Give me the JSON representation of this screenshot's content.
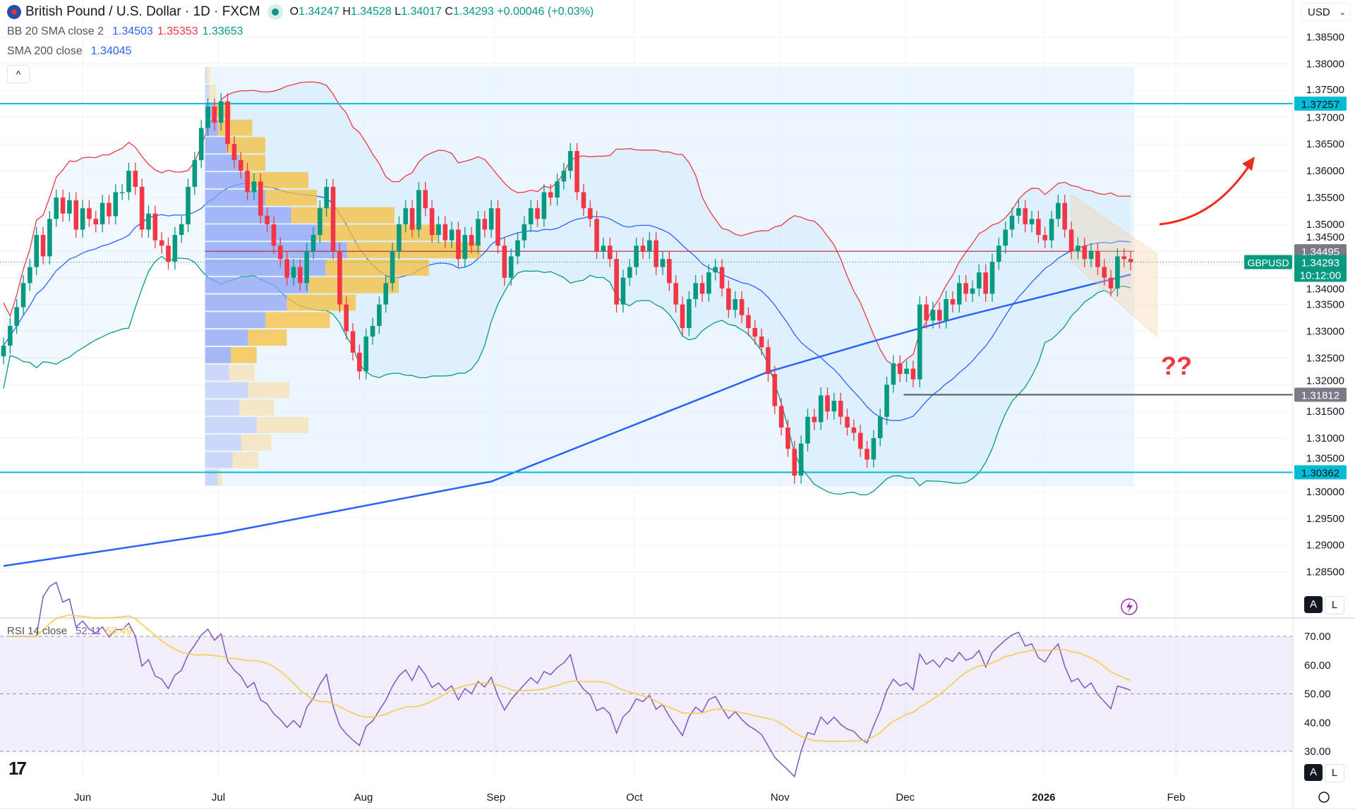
{
  "header": {
    "symbol_title": "British Pound / U.S. Dollar · 1D · FXCM",
    "o_label": "O",
    "o": "1.34247",
    "h_label": "H",
    "h": "1.34528",
    "l_label": "L",
    "l": "1.34017",
    "c_label": "C",
    "c": "1.34293",
    "change": "+0.00046 (+0.03%)"
  },
  "indicators": {
    "bb_label": "BB 20 SMA close 2",
    "bb_basis": "1.34503",
    "bb_upper": "1.35353",
    "bb_lower": "1.33653",
    "sma_label": "SMA 200 close",
    "sma_value": "1.34045",
    "rsi_label": "RSI 14 close",
    "rsi_value": "52.11",
    "rsi_ma": "53.49"
  },
  "controls": {
    "currency": "USD",
    "collapse": "^",
    "auto": "A",
    "log": "L"
  },
  "annotations": {
    "question": "??"
  },
  "colors": {
    "up": "#089981",
    "down": "#f23645",
    "sma200": "#2962ff",
    "bb_upper": "#f23645",
    "bb_lower": "#089981",
    "bb_basis": "#2962ff",
    "level": "#00bcd4",
    "rsi": "#7e57c2",
    "rsi_ma": "#f7c948"
  },
  "chart_data": {
    "type": "candlestick",
    "symbol": "GBPUSD",
    "ylim": [
      1.2825,
      1.388
    ],
    "price_ticks": [
      "1.38500",
      "1.38000",
      "1.37500",
      "1.37000",
      "1.36500",
      "1.36000",
      "1.35500",
      "1.35000",
      "1.34500",
      "1.34000",
      "1.33500",
      "1.33000",
      "1.32500",
      "1.32000",
      "1.31500",
      "1.31000",
      "1.30500",
      "1.30000",
      "1.29500",
      "1.29000",
      "1.28500"
    ],
    "time_ticks": [
      {
        "label": "Jun",
        "index": 12
      },
      {
        "label": "Jul",
        "index": 32.6
      },
      {
        "label": "Aug",
        "index": 54.6
      },
      {
        "label": "Sep",
        "index": 74.7
      },
      {
        "label": "Oct",
        "index": 95.7
      },
      {
        "label": "Nov",
        "index": 117.8
      },
      {
        "label": "Dec",
        "index": 136.8
      },
      {
        "label": "2026",
        "index": 157.8,
        "bold": true
      },
      {
        "label": "Feb",
        "index": 177.9
      }
    ],
    "closes": [
      1.3273,
      1.331,
      1.3345,
      1.339,
      1.342,
      1.348,
      1.344,
      1.351,
      1.355,
      1.352,
      1.3545,
      1.349,
      1.353,
      1.351,
      1.35,
      1.354,
      1.3515,
      1.356,
      1.356,
      1.36,
      1.357,
      1.349,
      1.352,
      1.347,
      1.346,
      1.343,
      1.348,
      1.35,
      1.357,
      1.362,
      1.368,
      1.372,
      1.369,
      1.373,
      1.365,
      1.362,
      1.36,
      1.356,
      1.358,
      1.3516,
      1.35,
      1.346,
      1.3435,
      1.34,
      1.342,
      1.339,
      1.345,
      1.348,
      1.353,
      1.357,
      1.345,
      1.335,
      1.33,
      1.326,
      1.3225,
      1.329,
      1.331,
      1.335,
      1.339,
      1.345,
      1.35,
      1.353,
      1.349,
      1.3564,
      1.353,
      1.348,
      1.35,
      1.347,
      1.349,
      1.3435,
      1.348,
      1.346,
      1.351,
      1.349,
      1.353,
      1.346,
      1.34,
      1.344,
      1.347,
      1.35,
      1.353,
      1.351,
      1.356,
      1.355,
      1.358,
      1.36,
      1.3637,
      1.356,
      1.353,
      1.351,
      1.345,
      1.346,
      1.3435,
      1.335,
      1.34,
      1.342,
      1.346,
      1.345,
      1.347,
      1.342,
      1.3435,
      1.339,
      1.335,
      1.3306,
      1.336,
      1.339,
      1.337,
      1.341,
      1.342,
      1.338,
      1.334,
      1.336,
      1.333,
      1.3306,
      1.329,
      1.327,
      1.322,
      1.316,
      1.312,
      1.308,
      1.303,
      1.309,
      1.314,
      1.313,
      1.318,
      1.315,
      1.317,
      1.314,
      1.312,
      1.311,
      1.308,
      1.306,
      1.31,
      1.314,
      1.32,
      1.324,
      1.322,
      1.323,
      1.321,
      1.335,
      1.332,
      1.334,
      1.332,
      1.336,
      1.335,
      1.339,
      1.337,
      1.338,
      1.341,
      1.337,
      1.343,
      1.346,
      1.349,
      1.3516,
      1.353,
      1.35,
      1.351,
      1.348,
      1.347,
      1.351,
      1.354,
      1.349,
      1.345,
      1.346,
      1.3435,
      1.345,
      1.342,
      1.34,
      1.338,
      1.344,
      1.3435,
      1.3429
    ],
    "sma200": [
      [
        0,
        1.2861
      ],
      [
        33,
        1.2922
      ],
      [
        74,
        1.3019
      ],
      [
        116,
        1.3224
      ],
      [
        131,
        1.3278
      ],
      [
        145,
        1.3326
      ],
      [
        171,
        1.3406
      ]
    ],
    "levels": [
      {
        "name": "resistance",
        "price": 1.37257,
        "label": "1.37257"
      },
      {
        "name": "support",
        "price": 1.30362,
        "label": "1.30362"
      },
      {
        "name": "swing-low",
        "price": 1.31812,
        "label": "1.31812",
        "from_index": 137
      },
      {
        "name": "poc",
        "price": 1.34495,
        "label": "1.34495",
        "from_index": 31
      }
    ],
    "last_price": {
      "label": "1.34293",
      "countdown": "10:12:00",
      "price": 1.34293
    },
    "volume_profile": {
      "from_index": 31,
      "to_index": 171,
      "top": 1.3795,
      "bottom": 1.301,
      "rows": [
        [
          2,
          4
        ],
        [
          5,
          8
        ],
        [
          10,
          20
        ],
        [
          15,
          40
        ],
        [
          25,
          45
        ],
        [
          40,
          30
        ],
        [
          50,
          70
        ],
        [
          70,
          60
        ],
        [
          100,
          120
        ],
        [
          130,
          140
        ],
        [
          165,
          155
        ],
        [
          140,
          120
        ],
        [
          120,
          105
        ],
        [
          95,
          80
        ],
        [
          70,
          75
        ],
        [
          50,
          45
        ],
        [
          30,
          30
        ],
        [
          28,
          30
        ],
        [
          50,
          48
        ],
        [
          40,
          40
        ],
        [
          60,
          60
        ],
        [
          42,
          35
        ],
        [
          32,
          30
        ],
        [
          15,
          5
        ]
      ]
    },
    "channel": {
      "from_index": 162,
      "to_index": 175,
      "upper": [
        1.3555,
        1.3445
      ],
      "lower": [
        1.343,
        1.329
      ]
    },
    "rsi": {
      "ylim": [
        30,
        70
      ],
      "ticks": [
        "70.00",
        "60.00",
        "50.00",
        "40.00",
        "30.00"
      ]
    }
  }
}
